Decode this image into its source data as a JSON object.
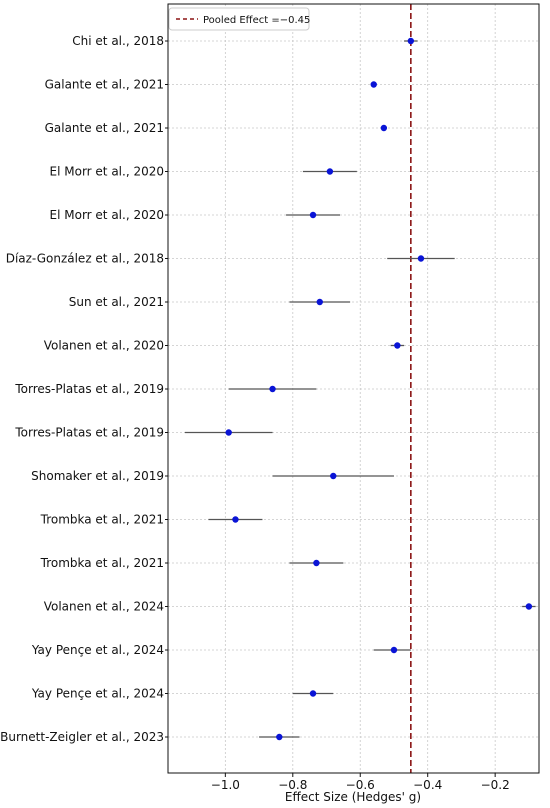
{
  "chart_data": {
    "type": "scatter",
    "style": "forest-plot",
    "xlabel": "Effect Size (Hedges' g)",
    "xlim": [
      -1.17,
      -0.07
    ],
    "xticks": [
      -1.0,
      -0.8,
      -0.6,
      -0.4,
      -0.2
    ],
    "xtick_labels": [
      "−1.0",
      "−0.8",
      "−0.6",
      "−0.4",
      "−0.2"
    ],
    "grid": true,
    "legend_position": "top-left",
    "pooled_effect": -0.45,
    "pooled_label": "Pooled Effect =−0.45",
    "colors": {
      "point": "#0a14d6",
      "ci_line": "#555555",
      "pooled_line": "#8b1414",
      "grid": "#c8c8c8",
      "axis": "#111111"
    },
    "studies": [
      {
        "label": "Chi et al., 2018",
        "effect": -0.45,
        "ci_low": -0.47,
        "ci_high": -0.43
      },
      {
        "label": "Galante et al., 2021",
        "effect": -0.56,
        "ci_low": -0.56,
        "ci_high": -0.56
      },
      {
        "label": "Galante et al., 2021",
        "effect": -0.53,
        "ci_low": -0.53,
        "ci_high": -0.53
      },
      {
        "label": "El Morr et al., 2020",
        "effect": -0.69,
        "ci_low": -0.77,
        "ci_high": -0.61
      },
      {
        "label": "El Morr et al., 2020",
        "effect": -0.74,
        "ci_low": -0.82,
        "ci_high": -0.66
      },
      {
        "label": "Díaz-González et al., 2018",
        "effect": -0.42,
        "ci_low": -0.52,
        "ci_high": -0.32
      },
      {
        "label": "Sun et al., 2021",
        "effect": -0.72,
        "ci_low": -0.81,
        "ci_high": -0.63
      },
      {
        "label": "Volanen et al., 2020",
        "effect": -0.49,
        "ci_low": -0.51,
        "ci_high": -0.47
      },
      {
        "label": "Torres-Platas et al., 2019",
        "effect": -0.86,
        "ci_low": -0.99,
        "ci_high": -0.73
      },
      {
        "label": "Torres-Platas et al., 2019",
        "effect": -0.99,
        "ci_low": -1.12,
        "ci_high": -0.86
      },
      {
        "label": "Shomaker et al., 2019",
        "effect": -0.68,
        "ci_low": -0.86,
        "ci_high": -0.5
      },
      {
        "label": "Trombka et al., 2021",
        "effect": -0.97,
        "ci_low": -1.05,
        "ci_high": -0.89
      },
      {
        "label": "Trombka et al., 2021",
        "effect": -0.73,
        "ci_low": -0.81,
        "ci_high": -0.65
      },
      {
        "label": "Volanen et al., 2024",
        "effect": -0.1,
        "ci_low": -0.12,
        "ci_high": -0.08
      },
      {
        "label": "Yay Pençe et al., 2024",
        "effect": -0.5,
        "ci_low": -0.56,
        "ci_high": -0.45
      },
      {
        "label": "Yay Pençe et al., 2024",
        "effect": -0.74,
        "ci_low": -0.8,
        "ci_high": -0.68
      },
      {
        "label": "Burnett-Zeigler et al., 2023",
        "effect": -0.84,
        "ci_low": -0.9,
        "ci_high": -0.78
      }
    ]
  }
}
